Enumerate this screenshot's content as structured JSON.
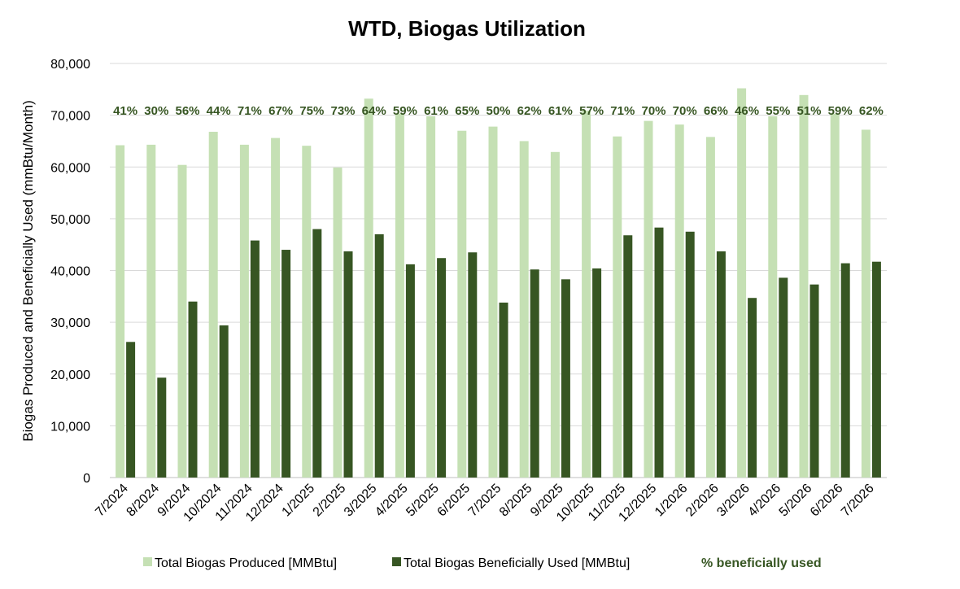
{
  "chart_data": {
    "type": "bar",
    "title": "WTD, Biogas Utilization",
    "ylabel": "Biogas Produced and Beneficially Used (mmBtu/Month)",
    "xlabel": "",
    "ylim": [
      0,
      80000
    ],
    "yticks": [
      0,
      10000,
      20000,
      30000,
      40000,
      50000,
      60000,
      70000,
      80000
    ],
    "ytick_labels": [
      "0",
      "10,000",
      "20,000",
      "30,000",
      "40,000",
      "50,000",
      "60,000",
      "70,000",
      "80,000"
    ],
    "grid": true,
    "legend_position": "bottom",
    "categories": [
      "7/2024",
      "8/2024",
      "9/2024",
      "10/2024",
      "11/2024",
      "12/2024",
      "1/2025",
      "2/2025",
      "3/2025",
      "4/2025",
      "5/2025",
      "6/2025",
      "7/2025",
      "8/2025",
      "9/2025",
      "10/2025",
      "11/2025",
      "12/2025",
      "1/2026",
      "2/2026",
      "3/2026",
      "4/2026",
      "5/2026",
      "6/2026",
      "7/2026"
    ],
    "series": [
      {
        "name": "Total Biogas Produced [MMBtu]",
        "color": "#c5e0b4",
        "values": [
          64200,
          64300,
          60400,
          66800,
          64300,
          65600,
          64100,
          59900,
          73200,
          70300,
          69800,
          67000,
          67800,
          65000,
          62900,
          70900,
          65900,
          68900,
          68200,
          65800,
          75200,
          69800,
          73900,
          70300,
          67200
        ]
      },
      {
        "name": "Total Biogas Beneficially Used [MMBtu]",
        "color": "#375623",
        "values": [
          26200,
          19300,
          34000,
          29400,
          45800,
          44000,
          48000,
          43700,
          47000,
          41200,
          42400,
          43500,
          33800,
          40200,
          38300,
          40400,
          46800,
          48300,
          47500,
          43700,
          34700,
          38600,
          37300,
          41400,
          41700
        ]
      }
    ],
    "annotation_series": {
      "name": "% beneficially used",
      "color": "#375623",
      "labels": [
        "41%",
        "30%",
        "56%",
        "44%",
        "71%",
        "67%",
        "75%",
        "73%",
        "64%",
        "59%",
        "61%",
        "65%",
        "50%",
        "62%",
        "61%",
        "57%",
        "71%",
        "70%",
        "70%",
        "66%",
        "46%",
        "55%",
        "51%",
        "59%",
        "62%"
      ]
    }
  }
}
